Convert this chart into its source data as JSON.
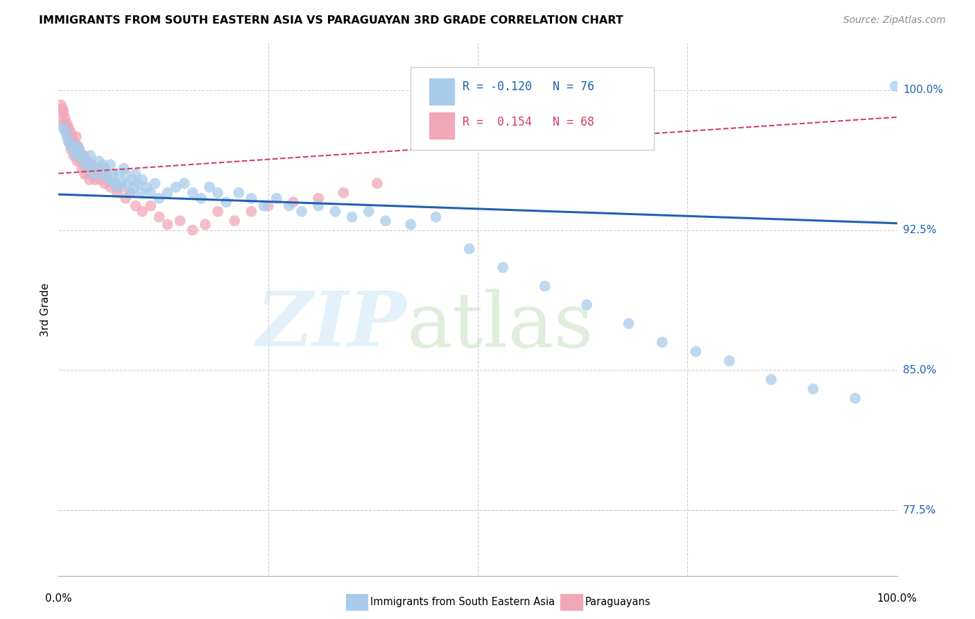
{
  "title": "IMMIGRANTS FROM SOUTH EASTERN ASIA VS PARAGUAYAN 3RD GRADE CORRELATION CHART",
  "source": "Source: ZipAtlas.com",
  "ylabel": "3rd Grade",
  "y_ticks": [
    77.5,
    85.0,
    92.5,
    100.0
  ],
  "y_tick_labels": [
    "77.5%",
    "85.0%",
    "92.5%",
    "100.0%"
  ],
  "xlim": [
    0.0,
    1.0
  ],
  "ylim": [
    74.0,
    102.5
  ],
  "blue_R": -0.12,
  "blue_N": 76,
  "pink_R": 0.154,
  "pink_N": 68,
  "legend_label_blue": "Immigrants from South Eastern Asia",
  "legend_label_pink": "Paraguayans",
  "blue_color": "#A8CCEA",
  "pink_color": "#F0A8B8",
  "blue_line_color": "#2060B0",
  "pink_line_color": "#D04060",
  "blue_x": [
    0.005,
    0.008,
    0.01,
    0.012,
    0.015,
    0.018,
    0.02,
    0.022,
    0.025,
    0.028,
    0.03,
    0.033,
    0.036,
    0.038,
    0.04,
    0.042,
    0.045,
    0.048,
    0.05,
    0.053,
    0.055,
    0.058,
    0.06,
    0.062,
    0.065,
    0.068,
    0.07,
    0.072,
    0.075,
    0.078,
    0.08,
    0.082,
    0.085,
    0.088,
    0.09,
    0.092,
    0.095,
    0.098,
    0.1,
    0.105,
    0.11,
    0.115,
    0.12,
    0.13,
    0.14,
    0.15,
    0.16,
    0.17,
    0.18,
    0.19,
    0.2,
    0.215,
    0.23,
    0.245,
    0.26,
    0.275,
    0.29,
    0.31,
    0.33,
    0.35,
    0.37,
    0.39,
    0.42,
    0.45,
    0.49,
    0.53,
    0.58,
    0.63,
    0.68,
    0.72,
    0.76,
    0.8,
    0.85,
    0.9,
    0.95,
    0.998
  ],
  "blue_y": [
    98.0,
    97.8,
    97.5,
    97.2,
    97.0,
    96.8,
    96.5,
    97.0,
    96.8,
    96.5,
    96.2,
    96.0,
    95.8,
    96.5,
    96.0,
    95.5,
    95.8,
    96.2,
    95.5,
    96.0,
    95.8,
    95.5,
    95.2,
    96.0,
    95.5,
    95.0,
    94.8,
    95.5,
    95.0,
    95.8,
    95.5,
    95.0,
    94.5,
    95.2,
    94.8,
    95.5,
    95.0,
    94.5,
    95.2,
    94.8,
    94.5,
    95.0,
    94.2,
    94.5,
    94.8,
    95.0,
    94.5,
    94.2,
    94.8,
    94.5,
    94.0,
    94.5,
    94.2,
    93.8,
    94.2,
    93.8,
    93.5,
    93.8,
    93.5,
    93.2,
    93.5,
    93.0,
    92.8,
    93.2,
    91.5,
    90.5,
    89.5,
    88.5,
    87.5,
    86.5,
    86.0,
    85.5,
    84.5,
    84.0,
    83.5,
    100.2
  ],
  "pink_x": [
    0.003,
    0.004,
    0.005,
    0.006,
    0.007,
    0.008,
    0.009,
    0.01,
    0.011,
    0.012,
    0.013,
    0.014,
    0.015,
    0.016,
    0.017,
    0.018,
    0.019,
    0.02,
    0.021,
    0.022,
    0.023,
    0.024,
    0.025,
    0.026,
    0.027,
    0.028,
    0.029,
    0.03,
    0.031,
    0.032,
    0.033,
    0.034,
    0.035,
    0.036,
    0.037,
    0.038,
    0.039,
    0.04,
    0.042,
    0.044,
    0.046,
    0.048,
    0.05,
    0.052,
    0.055,
    0.058,
    0.062,
    0.066,
    0.07,
    0.075,
    0.08,
    0.086,
    0.092,
    0.1,
    0.11,
    0.12,
    0.13,
    0.145,
    0.16,
    0.175,
    0.19,
    0.21,
    0.23,
    0.25,
    0.28,
    0.31,
    0.34,
    0.38
  ],
  "pink_y": [
    99.2,
    98.5,
    99.0,
    98.8,
    98.2,
    98.5,
    97.8,
    98.2,
    97.5,
    98.0,
    97.2,
    97.8,
    96.8,
    97.5,
    97.0,
    96.5,
    97.2,
    96.8,
    97.5,
    96.2,
    97.0,
    96.5,
    96.8,
    96.2,
    96.5,
    95.8,
    96.2,
    96.5,
    95.5,
    96.0,
    95.8,
    96.2,
    95.5,
    96.0,
    95.2,
    95.8,
    96.0,
    95.5,
    95.8,
    95.2,
    95.5,
    95.8,
    95.2,
    95.5,
    95.0,
    95.2,
    94.8,
    95.0,
    94.5,
    94.8,
    94.2,
    94.5,
    93.8,
    93.5,
    93.8,
    93.2,
    92.8,
    93.0,
    92.5,
    92.8,
    93.5,
    93.0,
    93.5,
    93.8,
    94.0,
    94.2,
    94.5,
    95.0
  ]
}
